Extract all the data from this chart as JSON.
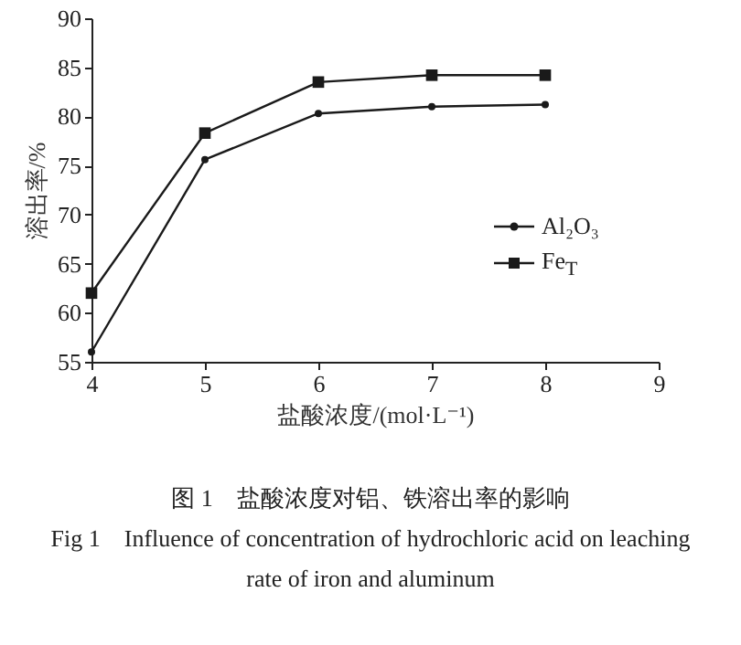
{
  "chart_data": {
    "type": "line",
    "xlabel": "盐酸浓度/(mol·L⁻¹)",
    "ylabel": "溶出率/%",
    "x": [
      4,
      5,
      6,
      7,
      8
    ],
    "series": [
      {
        "name": "Al₂O₃",
        "color": "#1a1a1a",
        "marker": "circle",
        "values": [
          56,
          75.6,
          80.3,
          81,
          81.2
        ]
      },
      {
        "name": "Fe$_{T}$",
        "color": "#1a1a1a",
        "marker": "square",
        "values": [
          62,
          78.3,
          83.5,
          84.2,
          84.2
        ]
      }
    ],
    "xlim": [
      4,
      9
    ],
    "xticks": [
      4,
      5,
      6,
      7,
      8,
      9
    ],
    "ylim": [
      55,
      90
    ],
    "yticks": [
      55,
      60,
      65,
      70,
      75,
      80,
      85,
      90
    ],
    "grid": false,
    "legend": "right",
    "line_style": "solid",
    "annotations": [
      "图 1　盐酸浓度对铝、铁溶出率的影响",
      "Fig 1　Influence of concentration of hydrochloric acid on leaching rate of iron and aluminum"
    ]
  }
}
